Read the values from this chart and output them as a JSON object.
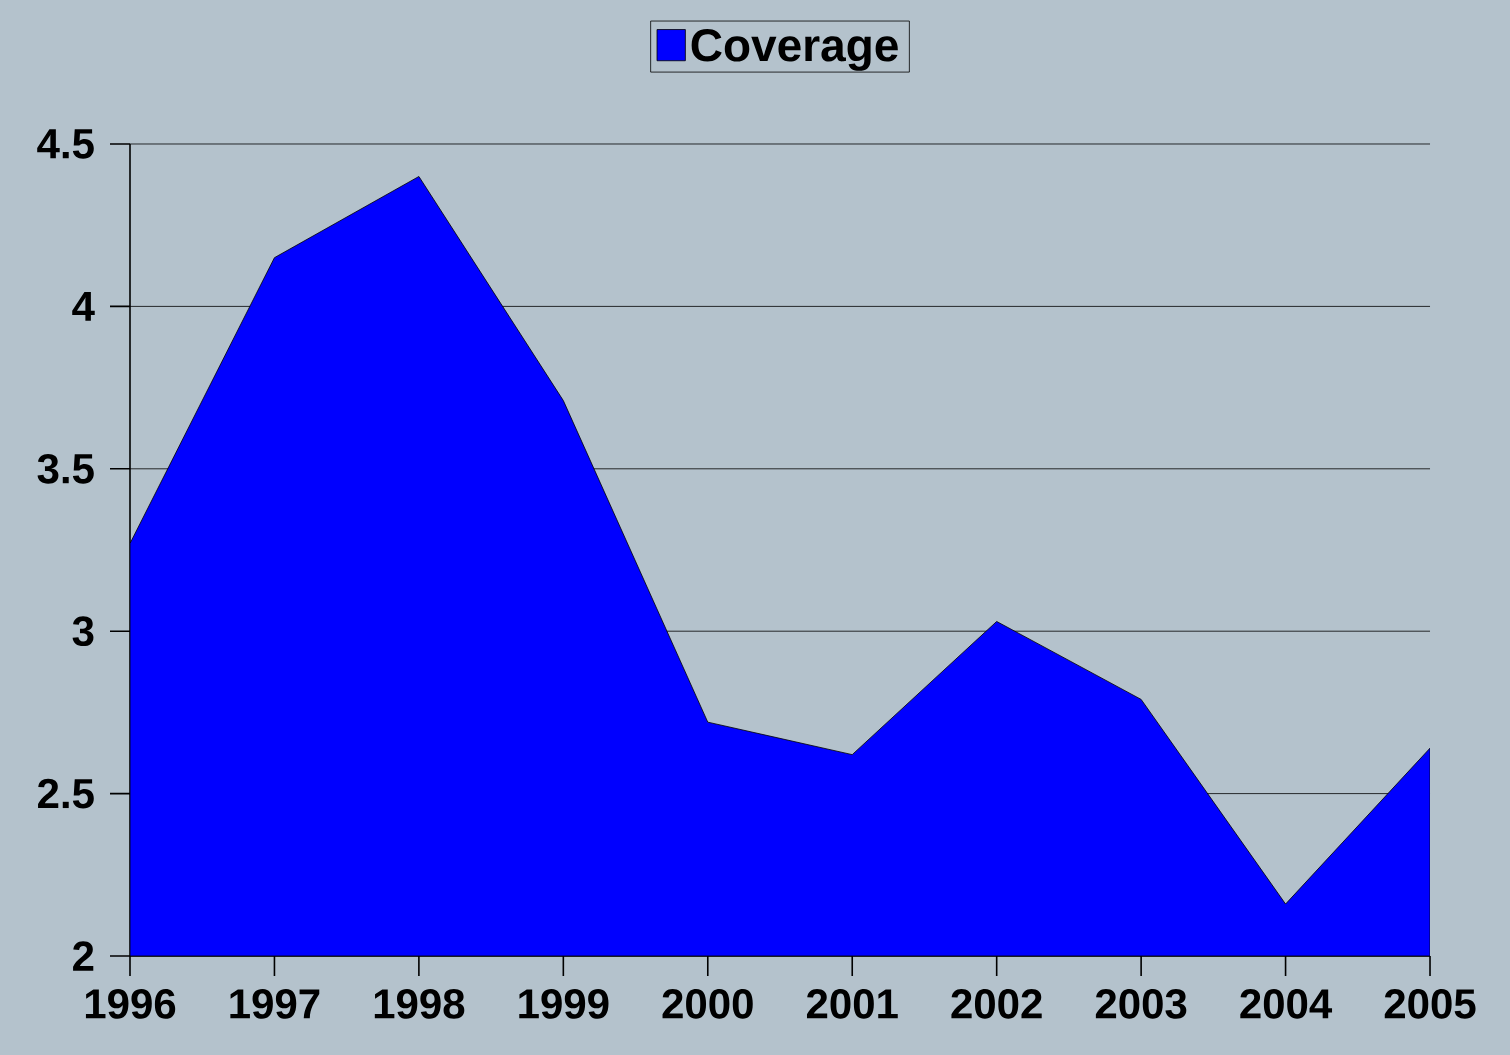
{
  "chart_data": {
    "type": "area",
    "categories": [
      "1996",
      "1997",
      "1998",
      "1999",
      "2000",
      "2001",
      "2002",
      "2003",
      "2004",
      "2005"
    ],
    "series": [
      {
        "name": "Coverage",
        "color": "#0000ff",
        "values": [
          3.27,
          4.15,
          4.4,
          3.71,
          2.72,
          2.62,
          3.03,
          2.79,
          2.16,
          2.64
        ]
      }
    ],
    "ylim": [
      2,
      4.5
    ],
    "yticks": [
      2,
      2.5,
      3,
      3.5,
      4,
      4.5
    ],
    "grid": "y",
    "legend": "top"
  }
}
